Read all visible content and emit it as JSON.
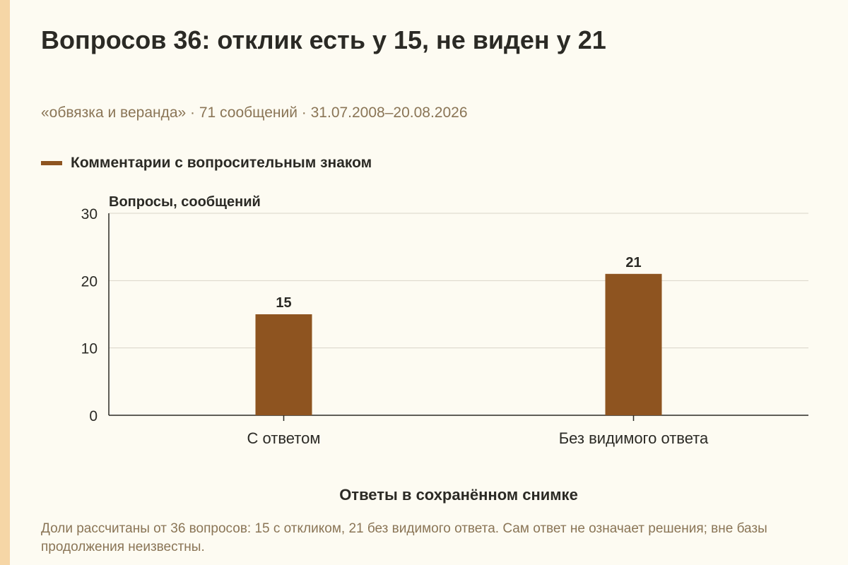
{
  "title": "Вопросов 36: отклик есть у 15, не виден у 21",
  "subtitle": "«обвязка и веранда» · 71 сообщений · 31.07.2008–20.08.2026",
  "footnote": "Доли рассчитаны от 36 вопросов: 15 с откликом, 21 без видимого ответа. Сам ответ не означает решения; вне базы продолжения неизвестны.",
  "colors": {
    "bar": "#8e5420",
    "grid": "#d9d4c8",
    "axis": "#2b2a25",
    "accent_stripe": "#f6d6a6"
  },
  "chart_data": {
    "type": "bar",
    "categories": [
      "С ответом",
      "Без видимого ответа"
    ],
    "series": [
      {
        "name": "Комментарии с вопросительным знаком",
        "values": [
          15,
          21
        ]
      }
    ],
    "data_labels": [
      "15",
      "21"
    ],
    "xlabel": "Ответы в сохранённом снимке",
    "ylabel": "Вопросы, сообщений",
    "ylim": [
      0,
      30
    ],
    "yticks": [
      0,
      10,
      20,
      30
    ],
    "grid": true,
    "legend_position": "top-left"
  }
}
